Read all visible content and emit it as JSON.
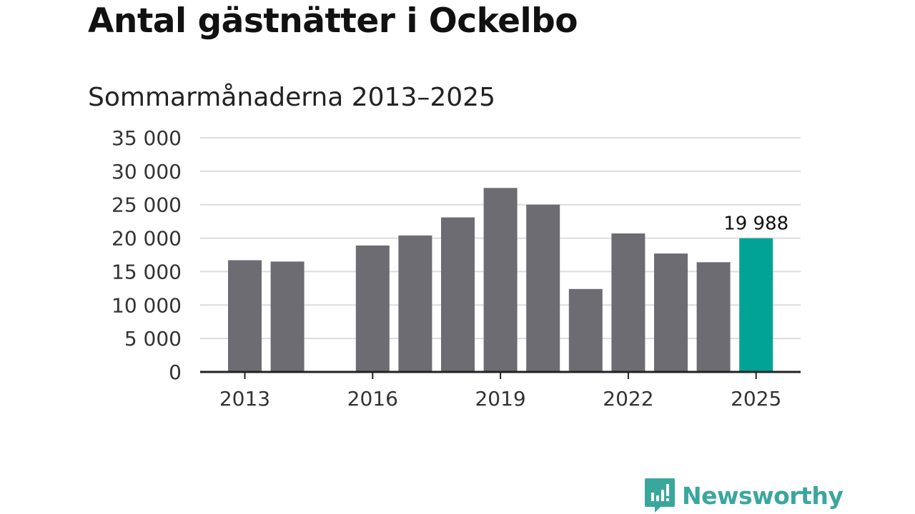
{
  "chart_data": {
    "type": "bar",
    "title": "Antal gästnätter i Ockelbo",
    "subtitle": "Sommarmånaderna 2013–2025",
    "x": [
      2013,
      2014,
      2015,
      2016,
      2017,
      2018,
      2019,
      2020,
      2021,
      2022,
      2023,
      2024,
      2025
    ],
    "values": [
      16700,
      16500,
      null,
      18900,
      20400,
      23100,
      27500,
      25000,
      12400,
      20700,
      17700,
      16400,
      19988
    ],
    "x_tick_labels": [
      "2013",
      "2016",
      "2019",
      "2022",
      "2025"
    ],
    "y_tick_labels": [
      "0",
      "5 000",
      "10 000",
      "15 000",
      "20 000",
      "25 000",
      "30 000",
      "35 000"
    ],
    "ylim": [
      0,
      35000
    ],
    "y_ticks": [
      0,
      5000,
      10000,
      15000,
      20000,
      25000,
      30000,
      35000
    ],
    "grid": true,
    "annotation": {
      "x": 2025,
      "text": "19 988"
    },
    "colors": {
      "default": "#6d6c73",
      "highlight": "#00a396",
      "grid": "#dcdcdc",
      "axis": "#222222"
    }
  },
  "brand": {
    "name": "Newsworthy",
    "icon": "newsworthy-logo-icon",
    "color": "#3aa79d"
  }
}
